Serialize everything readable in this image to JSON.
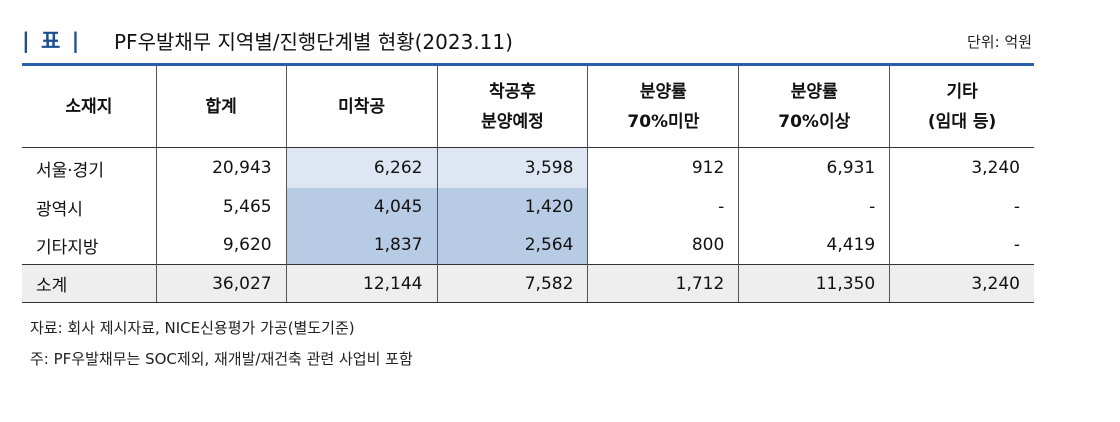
{
  "title": {
    "mark": "| 표 |",
    "text": "PF우발채무 지역별/진행단계별 현황(2023.11)",
    "unit": "단위: 억원"
  },
  "table": {
    "headers": [
      [
        "소재지"
      ],
      [
        "합계"
      ],
      [
        "미착공"
      ],
      [
        "착공후",
        "분양예정"
      ],
      [
        "분양률",
        "70%미만"
      ],
      [
        "분양률",
        "70%이상"
      ],
      [
        "기타",
        "(임대 등)"
      ]
    ],
    "rows": [
      [
        "서울·경기",
        "20,943",
        "6,262",
        "3,598",
        "912",
        "6,931",
        "3,240"
      ],
      [
        "광역시",
        "5,465",
        "4,045",
        "1,420",
        "-",
        "-",
        "-"
      ],
      [
        "기타지방",
        "9,620",
        "1,837",
        "2,564",
        "800",
        "4,419",
        "-"
      ]
    ],
    "subtotal": [
      "소계",
      "36,027",
      "12,144",
      "7,582",
      "1,712",
      "11,350",
      "3,240"
    ],
    "highlight_colors": {
      "light": "#dde6f2",
      "mid": "#b8cbe4"
    }
  },
  "notes": [
    "자료: 회사 제시자료, NICE신용평가 가공(별도기준)",
    "주: PF우발채무는 SOC제외, 재개발/재건축 관련 사업비 포함"
  ]
}
